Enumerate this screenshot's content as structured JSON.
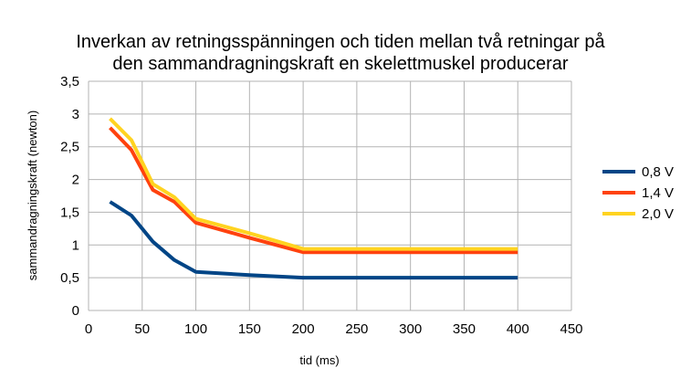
{
  "chart_data": {
    "type": "line",
    "title": [
      "Inverkan av retningsspänningen och tiden mellan två retningar på",
      "den sammandragningskraft en skelettmuskel producerar"
    ],
    "xlabel": "tid (ms)",
    "ylabel": "sammandragningskraft (newton)",
    "xlim": [
      0,
      450
    ],
    "ylim": [
      0,
      3.5
    ],
    "x_ticks": [
      "0",
      "50",
      "100",
      "150",
      "200",
      "250",
      "300",
      "350",
      "400",
      "450"
    ],
    "y_ticks": [
      "0",
      "0,5",
      "1",
      "1,5",
      "2",
      "2,5",
      "3",
      "3,5"
    ],
    "grid": true,
    "legend_position": "right",
    "x": [
      20,
      40,
      60,
      80,
      100,
      150,
      200,
      400
    ],
    "series": [
      {
        "name": "0,8 V",
        "color": "#004586",
        "values": [
          1.66,
          1.45,
          1.05,
          0.77,
          0.59,
          0.54,
          0.5,
          0.5
        ]
      },
      {
        "name": "1,4 V",
        "color": "#ff420e",
        "values": [
          2.79,
          2.45,
          1.84,
          1.66,
          1.34,
          1.11,
          0.89,
          0.89
        ]
      },
      {
        "name": "2,0 V",
        "color": "#ffd320",
        "values": [
          2.93,
          2.6,
          1.93,
          1.73,
          1.4,
          1.18,
          0.94,
          0.94
        ]
      }
    ]
  }
}
